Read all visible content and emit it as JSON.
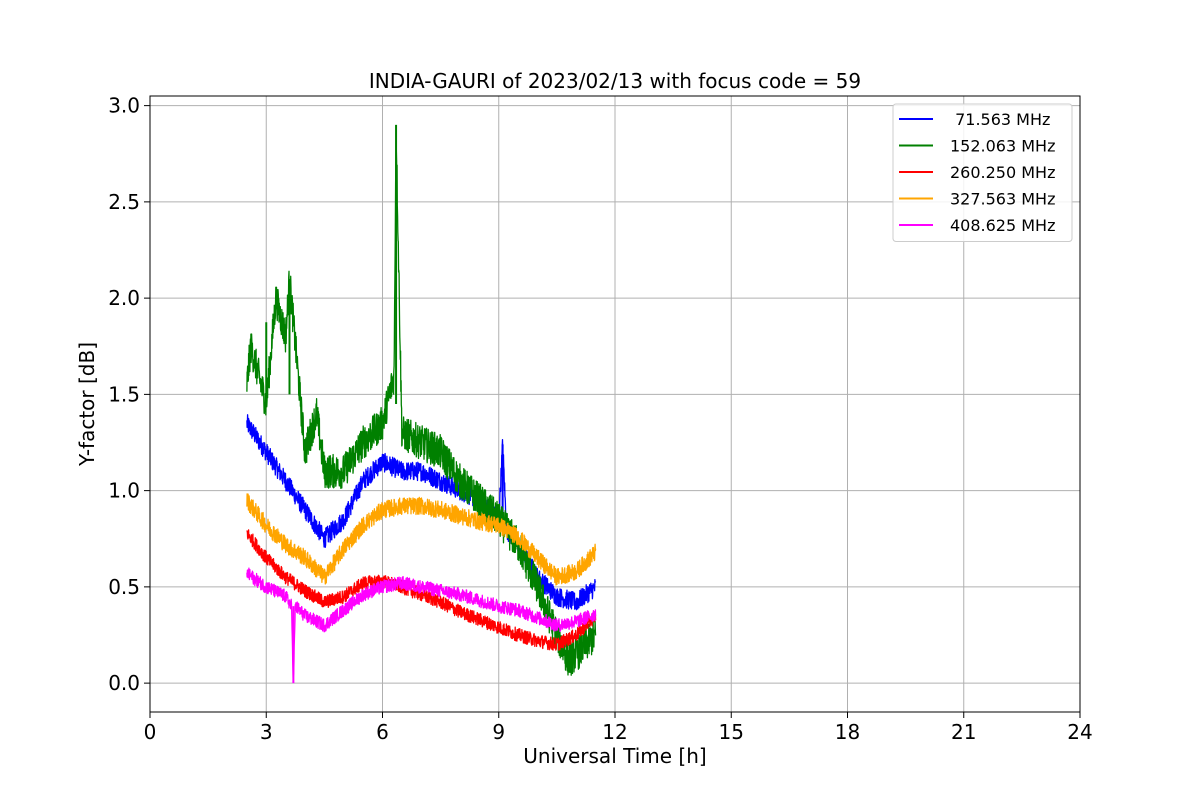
{
  "chart_data": {
    "type": "line",
    "title": "INDIA-GAURI of 2023/02/13 with focus code = 59",
    "xlabel": "Universal Time [h]",
    "ylabel": "Y-factor [dB]",
    "xlim": [
      0,
      24
    ],
    "ylim": [
      -0.15,
      3.05
    ],
    "xticks": [
      0,
      3,
      6,
      9,
      12,
      15,
      18,
      21,
      24
    ],
    "xtick_labels": [
      "0",
      "3",
      "6",
      "9",
      "12",
      "15",
      "18",
      "21",
      "24"
    ],
    "yticks": [
      0.0,
      0.5,
      1.0,
      1.5,
      2.0,
      2.5,
      3.0
    ],
    "ytick_labels": [
      "0.0",
      "0.5",
      "1.0",
      "1.5",
      "2.0",
      "2.5",
      "3.0"
    ],
    "grid": true,
    "legend_position": "top-right",
    "series": [
      {
        "name": " 71.563 MHz",
        "color": "#0000ff",
        "noise": 0.05,
        "x": [
          2.5,
          3.0,
          3.5,
          4.0,
          4.5,
          5.0,
          5.5,
          6.0,
          6.5,
          7.0,
          7.5,
          8.0,
          8.5,
          9.0,
          9.1,
          9.2,
          9.5,
          10.0,
          10.5,
          11.0,
          11.5
        ],
        "y": [
          1.35,
          1.2,
          1.05,
          0.9,
          0.75,
          0.85,
          1.05,
          1.15,
          1.1,
          1.1,
          1.05,
          1.0,
          0.95,
          0.85,
          1.24,
          0.8,
          0.72,
          0.55,
          0.45,
          0.42,
          0.5
        ]
      },
      {
        "name": "152.063 MHz",
        "color": "#008000",
        "noise": 0.09,
        "x": [
          2.5,
          2.6,
          3.0,
          3.25,
          3.5,
          3.6,
          4.0,
          4.3,
          4.5,
          5.0,
          5.5,
          6.0,
          6.3,
          6.35,
          6.5,
          7.0,
          7.5,
          8.0,
          8.5,
          9.0,
          9.5,
          10.0,
          10.5,
          10.8,
          11.0,
          11.5
        ],
        "y": [
          1.55,
          1.75,
          1.45,
          2.0,
          1.8,
          2.1,
          1.2,
          1.4,
          1.1,
          1.1,
          1.25,
          1.35,
          1.6,
          2.9,
          1.3,
          1.25,
          1.2,
          1.05,
          0.95,
          0.85,
          0.72,
          0.5,
          0.25,
          0.12,
          0.15,
          0.25
        ]
      },
      {
        "name": "260.250 MHz",
        "color": "#ff0000",
        "noise": 0.035,
        "x": [
          2.5,
          3.0,
          3.5,
          4.0,
          4.5,
          5.0,
          5.5,
          6.0,
          6.5,
          7.0,
          7.5,
          8.0,
          8.5,
          9.0,
          9.5,
          10.0,
          10.5,
          11.0,
          11.5
        ],
        "y": [
          0.78,
          0.65,
          0.55,
          0.48,
          0.42,
          0.45,
          0.52,
          0.53,
          0.5,
          0.46,
          0.42,
          0.37,
          0.33,
          0.29,
          0.25,
          0.22,
          0.2,
          0.25,
          0.35
        ]
      },
      {
        "name": "327.563 MHz",
        "color": "#ffa500",
        "noise": 0.045,
        "x": [
          2.5,
          3.0,
          3.5,
          4.0,
          4.5,
          5.0,
          5.5,
          6.0,
          6.5,
          7.0,
          7.5,
          8.0,
          8.5,
          9.0,
          9.5,
          10.0,
          10.5,
          11.0,
          11.5
        ],
        "y": [
          0.95,
          0.82,
          0.72,
          0.65,
          0.55,
          0.7,
          0.82,
          0.9,
          0.92,
          0.92,
          0.9,
          0.87,
          0.84,
          0.82,
          0.76,
          0.65,
          0.55,
          0.58,
          0.68
        ]
      },
      {
        "name": "408.625 MHz",
        "color": "#ff00ff",
        "noise": 0.035,
        "x": [
          2.5,
          3.0,
          3.5,
          3.65,
          3.7,
          3.75,
          4.0,
          4.5,
          5.0,
          5.5,
          6.0,
          6.5,
          7.0,
          7.5,
          8.0,
          8.5,
          9.0,
          9.5,
          10.0,
          10.5,
          11.0,
          11.5
        ],
        "y": [
          0.57,
          0.5,
          0.45,
          0.4,
          0.0,
          0.4,
          0.35,
          0.3,
          0.38,
          0.46,
          0.5,
          0.52,
          0.5,
          0.48,
          0.46,
          0.43,
          0.4,
          0.38,
          0.34,
          0.3,
          0.32,
          0.36
        ]
      }
    ]
  }
}
